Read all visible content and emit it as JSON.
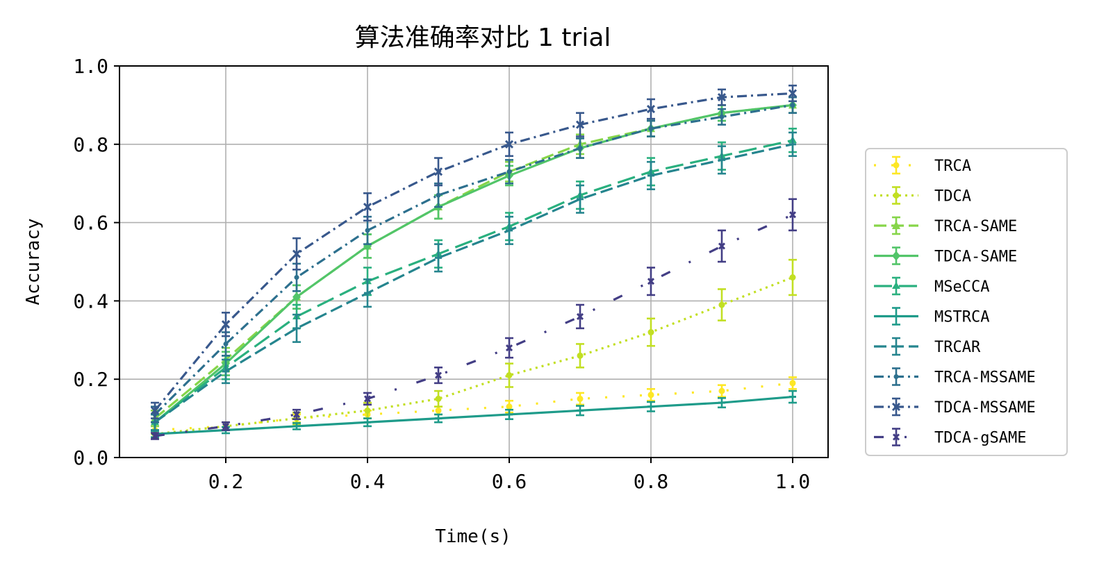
{
  "chart_data": {
    "type": "line",
    "title": "算法准确率对比 1 trial",
    "xlabel": "Time(s)",
    "ylabel": "Accuracy",
    "xlim": [
      0.05,
      1.05
    ],
    "ylim": [
      0.0,
      1.0
    ],
    "xticks": [
      "0.2",
      "0.4",
      "0.6",
      "0.8",
      "1.0"
    ],
    "yticks": [
      "0.0",
      "0.2",
      "0.4",
      "0.6",
      "0.8",
      "1.0"
    ],
    "grid": true,
    "legend_position": "right",
    "x": [
      0.1,
      0.2,
      0.3,
      0.4,
      0.5,
      0.6,
      0.7,
      0.8,
      0.9,
      1.0
    ],
    "series": [
      {
        "name": "TRCA",
        "color": "#fde725",
        "dash": "dotted-sparse",
        "marker": "circle",
        "values": [
          0.07,
          0.08,
          0.1,
          0.11,
          0.12,
          0.13,
          0.15,
          0.16,
          0.17,
          0.19
        ],
        "errors": [
          0.01,
          0.01,
          0.01,
          0.01,
          0.01,
          0.015,
          0.015,
          0.015,
          0.015,
          0.015
        ]
      },
      {
        "name": "TDCA",
        "color": "#c2df23",
        "dash": "dotted",
        "marker": "circle",
        "values": [
          0.06,
          0.08,
          0.1,
          0.12,
          0.15,
          0.21,
          0.26,
          0.32,
          0.39,
          0.46
        ],
        "errors": [
          0.01,
          0.01,
          0.015,
          0.02,
          0.02,
          0.03,
          0.03,
          0.035,
          0.04,
          0.045
        ]
      },
      {
        "name": "TRCA-SAME",
        "color": "#86d549",
        "dash": "dashed",
        "marker": "triangle",
        "values": [
          0.1,
          0.25,
          0.41,
          0.54,
          0.64,
          0.73,
          0.8,
          0.84,
          0.88,
          0.9
        ],
        "errors": [
          0.02,
          0.03,
          0.03,
          0.03,
          0.03,
          0.025,
          0.025,
          0.02,
          0.02,
          0.02
        ]
      },
      {
        "name": "TDCA-SAME",
        "color": "#52c569",
        "dash": "solid",
        "marker": "diamond",
        "values": [
          0.09,
          0.24,
          0.41,
          0.54,
          0.64,
          0.72,
          0.79,
          0.84,
          0.88,
          0.9
        ],
        "errors": [
          0.02,
          0.03,
          0.03,
          0.03,
          0.03,
          0.025,
          0.025,
          0.02,
          0.02,
          0.02
        ]
      },
      {
        "name": "MSeCCA",
        "color": "#2ab07f",
        "dash": "dashed-long",
        "marker": "tri",
        "values": [
          0.09,
          0.23,
          0.36,
          0.45,
          0.52,
          0.59,
          0.67,
          0.73,
          0.77,
          0.81
        ],
        "errors": [
          0.02,
          0.03,
          0.03,
          0.035,
          0.035,
          0.035,
          0.035,
          0.035,
          0.035,
          0.03
        ]
      },
      {
        "name": "MSTRCA",
        "color": "#1e9b8a",
        "dash": "solid",
        "marker": "tick",
        "values": [
          0.06,
          0.07,
          0.08,
          0.09,
          0.1,
          0.11,
          0.12,
          0.13,
          0.14,
          0.155
        ],
        "errors": [
          0.008,
          0.008,
          0.008,
          0.01,
          0.01,
          0.012,
          0.012,
          0.012,
          0.012,
          0.015
        ]
      },
      {
        "name": "TRCAR",
        "color": "#25858e",
        "dash": "dashed",
        "marker": "tick",
        "values": [
          0.09,
          0.22,
          0.33,
          0.42,
          0.51,
          0.58,
          0.66,
          0.72,
          0.76,
          0.8
        ],
        "errors": [
          0.02,
          0.03,
          0.035,
          0.035,
          0.035,
          0.035,
          0.035,
          0.035,
          0.035,
          0.03
        ]
      },
      {
        "name": "TRCA-MSSAME",
        "color": "#2d708e",
        "dash": "dashdot",
        "marker": "circle-small",
        "values": [
          0.11,
          0.29,
          0.46,
          0.58,
          0.67,
          0.73,
          0.79,
          0.84,
          0.87,
          0.9
        ],
        "errors": [
          0.02,
          0.03,
          0.035,
          0.035,
          0.03,
          0.03,
          0.025,
          0.02,
          0.02,
          0.02
        ]
      },
      {
        "name": "TDCA-MSSAME",
        "color": "#38588c",
        "dash": "dashdot",
        "marker": "x",
        "values": [
          0.12,
          0.34,
          0.52,
          0.64,
          0.73,
          0.8,
          0.85,
          0.89,
          0.92,
          0.93
        ],
        "errors": [
          0.02,
          0.03,
          0.04,
          0.035,
          0.035,
          0.03,
          0.03,
          0.025,
          0.02,
          0.02
        ]
      },
      {
        "name": "TDCA-gSAME",
        "color": "#433e85",
        "dash": "dashdot-sparse",
        "marker": "x-small",
        "values": [
          0.055,
          0.08,
          0.11,
          0.15,
          0.21,
          0.28,
          0.36,
          0.45,
          0.54,
          0.62
        ],
        "errors": [
          0.008,
          0.01,
          0.012,
          0.015,
          0.02,
          0.025,
          0.03,
          0.035,
          0.04,
          0.04
        ]
      }
    ]
  }
}
